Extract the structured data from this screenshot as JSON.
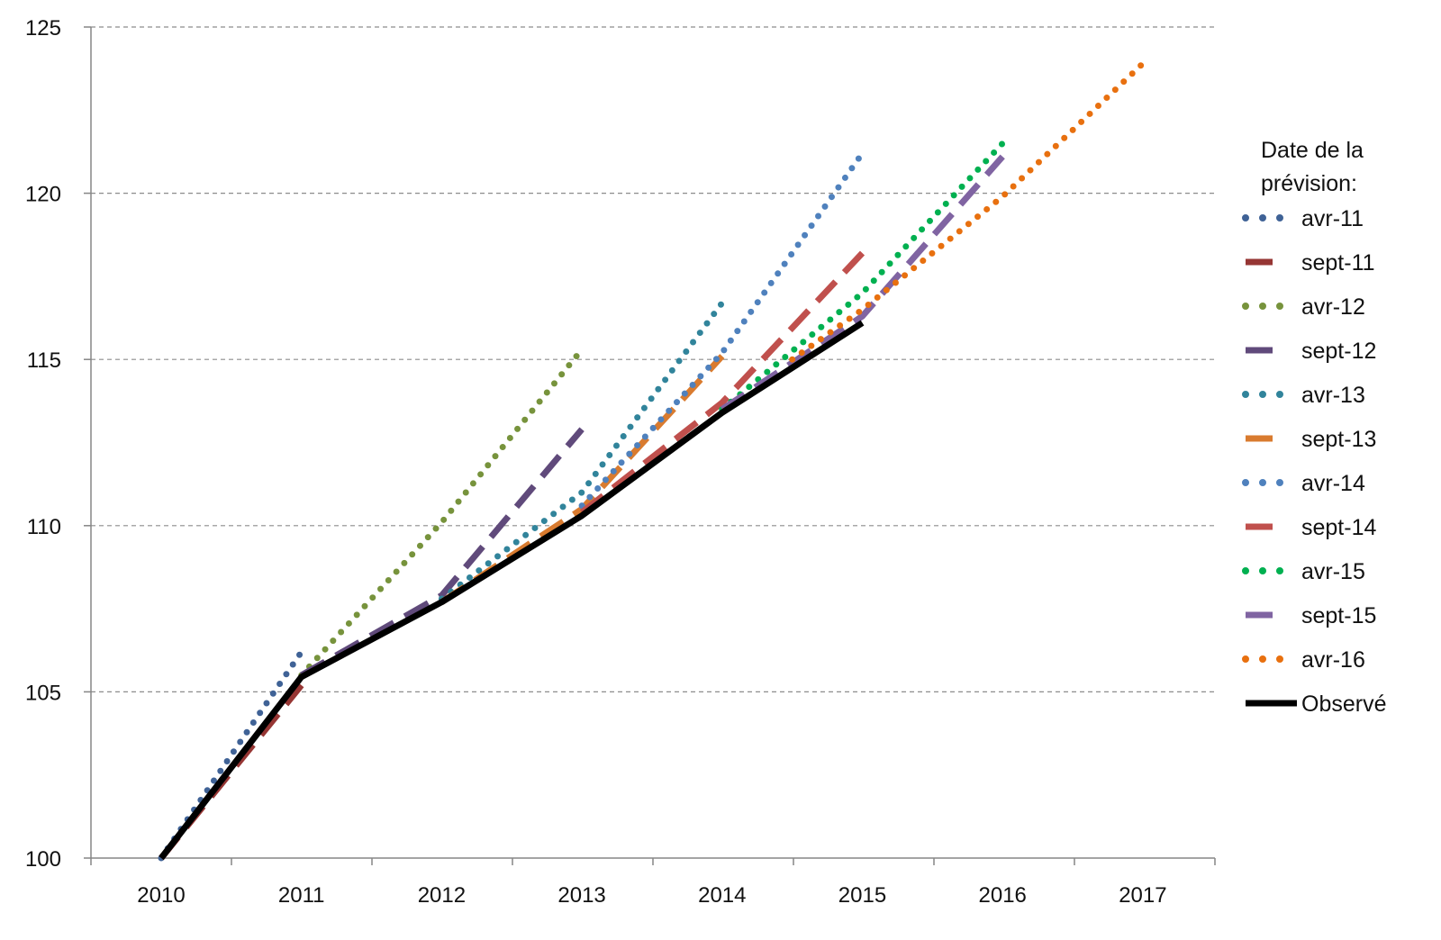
{
  "chart_data": {
    "type": "line",
    "title": "",
    "xlabel": "",
    "ylabel": "",
    "ylim": [
      100,
      125
    ],
    "xlim": [
      2009.5,
      2017.5
    ],
    "yticks": [
      "100",
      "105",
      "110",
      "115",
      "120",
      "125"
    ],
    "xticks": [
      "2010",
      "2011",
      "2012",
      "2013",
      "2014",
      "2015",
      "2016",
      "2017"
    ],
    "grid": "horizontal dashed",
    "legend": {
      "title": [
        "Date de la",
        "prévision:"
      ],
      "placement": "right"
    },
    "series": [
      {
        "name": "avr-11",
        "style": "dotted",
        "color": "#3f6296",
        "x": [
          2010,
          2011
        ],
        "values": [
          100,
          106.2
        ]
      },
      {
        "name": "sept-11",
        "style": "dashed",
        "color": "#963634",
        "x": [
          2010,
          2011
        ],
        "values": [
          100,
          105.2
        ]
      },
      {
        "name": "avr-12",
        "style": "dotted",
        "color": "#77933c",
        "x": [
          2011,
          2012,
          2013
        ],
        "values": [
          105.5,
          110.1,
          115.3
        ]
      },
      {
        "name": "sept-12",
        "style": "dashed",
        "color": "#604a7b",
        "x": [
          2011,
          2012,
          2013
        ],
        "values": [
          105.5,
          107.9,
          112.9
        ]
      },
      {
        "name": "avr-13",
        "style": "dotted",
        "color": "#31849b",
        "x": [
          2012,
          2013,
          2014
        ],
        "values": [
          107.8,
          111.0,
          116.7
        ]
      },
      {
        "name": "sept-13",
        "style": "dashed",
        "color": "#d97b2f",
        "x": [
          2012,
          2013,
          2014
        ],
        "values": [
          107.7,
          110.5,
          115.1
        ]
      },
      {
        "name": "avr-14",
        "style": "dotted",
        "color": "#4f81bd",
        "x": [
          2013,
          2014,
          2015
        ],
        "values": [
          110.6,
          115.2,
          121.2
        ]
      },
      {
        "name": "sept-14",
        "style": "dashed",
        "color": "#c0504d",
        "x": [
          2013,
          2014,
          2015
        ],
        "values": [
          110.4,
          113.7,
          118.2
        ]
      },
      {
        "name": "avr-15",
        "style": "dotted",
        "color": "#00b050",
        "x": [
          2014,
          2015,
          2016
        ],
        "values": [
          113.5,
          117.0,
          121.5
        ]
      },
      {
        "name": "sept-15",
        "style": "dashed",
        "color": "#8064a2",
        "x": [
          2014,
          2015,
          2016
        ],
        "values": [
          113.5,
          116.3,
          121.1
        ]
      },
      {
        "name": "avr-16",
        "style": "dotted",
        "color": "#e8700f",
        "x": [
          2014.5,
          2015,
          2016,
          2017
        ],
        "values": [
          115.0,
          116.5,
          119.9,
          123.9
        ]
      },
      {
        "name": "Observé",
        "style": "solid",
        "color": "#000000",
        "x": [
          2010,
          2011,
          2012,
          2013,
          2014,
          2015
        ],
        "values": [
          100,
          105.45,
          107.7,
          110.3,
          113.4,
          116.1
        ]
      }
    ]
  }
}
